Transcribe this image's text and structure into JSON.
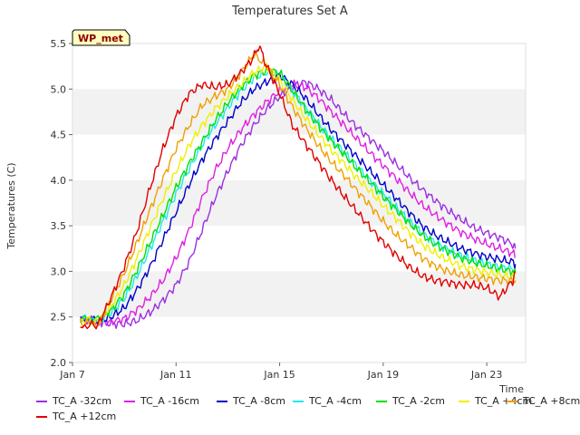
{
  "chart_data": {
    "type": "line",
    "title": "Temperatures Set A",
    "xlabel": "Time",
    "ylabel": "Temperatures (C)",
    "badge": "WP_met",
    "xlim": [
      7,
      24.5
    ],
    "ylim": [
      2.0,
      5.5
    ],
    "x_ticks": [
      {
        "value": 7,
        "label": "Jan 7"
      },
      {
        "value": 11,
        "label": "Jan 11"
      },
      {
        "value": 15,
        "label": "Jan 15"
      },
      {
        "value": 19,
        "label": "Jan 19"
      },
      {
        "value": 23,
        "label": "Jan 23"
      }
    ],
    "y_ticks": [
      "2.0",
      "2.5",
      "3.0",
      "3.5",
      "4.0",
      "4.5",
      "5.0",
      "5.5"
    ],
    "grid": "alternating horizontal bands",
    "legend_position": "bottom",
    "series": [
      {
        "name": "TC_A -32cm",
        "color": "#9b30e0",
        "x": [
          7.3,
          8,
          8.5,
          9,
          9.5,
          10,
          10.5,
          11,
          11.5,
          12,
          12.5,
          13,
          13.5,
          14,
          14.5,
          15,
          15.5,
          16,
          16.5,
          17,
          17.5,
          18,
          18.5,
          19,
          19.5,
          20,
          20.5,
          21,
          21.5,
          22,
          22.5,
          23,
          23.5,
          24,
          24.1
        ],
        "y": [
          2.48,
          2.45,
          2.43,
          2.42,
          2.46,
          2.55,
          2.68,
          2.85,
          3.1,
          3.45,
          3.8,
          4.1,
          4.38,
          4.6,
          4.78,
          4.92,
          5.03,
          5.08,
          5.0,
          4.88,
          4.72,
          4.58,
          4.45,
          4.32,
          4.18,
          4.03,
          3.9,
          3.78,
          3.67,
          3.57,
          3.48,
          3.42,
          3.37,
          3.3,
          3.25
        ]
      },
      {
        "name": "TC_A -16cm",
        "color": "#e020e0",
        "x": [
          7.3,
          8,
          8.5,
          9,
          9.5,
          10,
          10.5,
          11,
          11.5,
          12,
          12.5,
          13,
          13.5,
          14,
          14.5,
          15,
          15.5,
          16,
          16.5,
          17,
          17.5,
          18,
          18.5,
          19,
          19.5,
          20,
          20.5,
          21,
          21.5,
          22,
          22.5,
          23,
          23.5,
          24,
          24.1
        ],
        "y": [
          2.46,
          2.44,
          2.45,
          2.48,
          2.58,
          2.72,
          2.9,
          3.15,
          3.45,
          3.8,
          4.1,
          4.35,
          4.55,
          4.72,
          4.86,
          4.98,
          5.05,
          5.02,
          4.9,
          4.75,
          4.6,
          4.45,
          4.3,
          4.16,
          4.02,
          3.87,
          3.73,
          3.62,
          3.52,
          3.43,
          3.36,
          3.3,
          3.25,
          3.2,
          3.15
        ]
      },
      {
        "name": "TC_A -8cm",
        "color": "#0000c8",
        "x": [
          7.3,
          8,
          8.5,
          9,
          9.5,
          10,
          10.5,
          11,
          11.5,
          12,
          12.5,
          13,
          13.5,
          14,
          14.5,
          15,
          15.5,
          16,
          16.5,
          17,
          17.5,
          18,
          18.5,
          19,
          19.5,
          20,
          20.5,
          21,
          21.5,
          22,
          22.5,
          23,
          23.5,
          24,
          24.1
        ],
        "y": [
          2.47,
          2.45,
          2.5,
          2.6,
          2.8,
          3.05,
          3.35,
          3.65,
          3.95,
          4.22,
          4.45,
          4.65,
          4.85,
          5.0,
          5.08,
          5.15,
          5.05,
          4.9,
          4.72,
          4.55,
          4.4,
          4.25,
          4.1,
          3.95,
          3.8,
          3.65,
          3.5,
          3.4,
          3.32,
          3.25,
          3.2,
          3.16,
          3.13,
          3.1,
          3.08
        ]
      },
      {
        "name": "TC_A -4cm",
        "color": "#20e8f0",
        "x": [
          7.3,
          8,
          8.5,
          9,
          9.5,
          10,
          10.5,
          11,
          11.5,
          12,
          12.5,
          13,
          13.5,
          14,
          14.5,
          15,
          15.5,
          16,
          16.5,
          17,
          17.5,
          18,
          18.5,
          19,
          19.5,
          20,
          20.5,
          21,
          21.5,
          22,
          22.5,
          23,
          23.5,
          24,
          24.1
        ],
        "y": [
          2.48,
          2.46,
          2.55,
          2.7,
          2.95,
          3.25,
          3.55,
          3.85,
          4.12,
          4.38,
          4.6,
          4.8,
          4.98,
          5.12,
          5.18,
          5.15,
          4.98,
          4.8,
          4.62,
          4.45,
          4.3,
          4.15,
          4.0,
          3.85,
          3.7,
          3.55,
          3.42,
          3.32,
          3.24,
          3.17,
          3.12,
          3.08,
          3.05,
          3.03,
          3.02
        ]
      },
      {
        "name": "TC_A -2cm",
        "color": "#00e000",
        "x": [
          7.3,
          8,
          8.5,
          9,
          9.5,
          10,
          10.5,
          11,
          11.5,
          12,
          12.5,
          13,
          13.5,
          14,
          14.5,
          15,
          15.5,
          16,
          16.5,
          17,
          17.5,
          18,
          18.5,
          19,
          19.5,
          20,
          20.5,
          21,
          21.5,
          22,
          22.5,
          23,
          23.5,
          24,
          24.1
        ],
        "y": [
          2.49,
          2.47,
          2.58,
          2.75,
          3.02,
          3.32,
          3.62,
          3.92,
          4.18,
          4.42,
          4.65,
          4.85,
          5.02,
          5.15,
          5.2,
          5.18,
          4.98,
          4.78,
          4.6,
          4.43,
          4.28,
          4.12,
          3.98,
          3.82,
          3.68,
          3.53,
          3.4,
          3.3,
          3.22,
          3.15,
          3.1,
          3.06,
          3.03,
          3.0,
          2.98
        ]
      },
      {
        "name": "TC_A +4cm",
        "color": "#f0f000",
        "x": [
          7.3,
          8,
          8.5,
          9,
          9.5,
          10,
          10.5,
          11,
          11.5,
          12,
          12.5,
          13,
          13.5,
          14,
          14.5,
          15,
          15.5,
          16,
          16.5,
          17,
          17.5,
          18,
          18.5,
          19,
          19.5,
          20,
          20.5,
          21,
          21.5,
          22,
          22.5,
          23,
          23.5,
          24,
          24.1
        ],
        "y": [
          2.47,
          2.45,
          2.62,
          2.85,
          3.15,
          3.48,
          3.8,
          4.1,
          4.38,
          4.6,
          4.78,
          4.92,
          5.05,
          5.18,
          5.25,
          5.1,
          4.88,
          4.68,
          4.5,
          4.33,
          4.18,
          4.02,
          3.88,
          3.72,
          3.58,
          3.43,
          3.3,
          3.2,
          3.12,
          3.06,
          3.02,
          2.99,
          2.96,
          2.94,
          2.92
        ]
      },
      {
        "name": "TC_A +8cm",
        "color": "#f0a000",
        "x": [
          7.3,
          8,
          8.5,
          9,
          9.5,
          10,
          10.5,
          11,
          11.5,
          12,
          12.5,
          13,
          13.5,
          14,
          14.5,
          15,
          15.5,
          16,
          16.5,
          17,
          17.5,
          18,
          18.5,
          19,
          19.5,
          20,
          20.5,
          21,
          21.5,
          22,
          22.5,
          23,
          23.5,
          24,
          24.1
        ],
        "y": [
          2.44,
          2.42,
          2.7,
          2.98,
          3.32,
          3.68,
          4.02,
          4.35,
          4.6,
          4.82,
          4.92,
          5.0,
          5.18,
          5.38,
          5.25,
          5.05,
          4.8,
          4.58,
          4.38,
          4.2,
          4.05,
          3.88,
          3.72,
          3.55,
          3.4,
          3.28,
          3.15,
          3.06,
          3.0,
          2.96,
          2.94,
          2.92,
          2.9,
          2.9,
          2.9
        ]
      },
      {
        "name": "TC_A +12cm",
        "color": "#e00000",
        "x": [
          7.3,
          8,
          8.5,
          9,
          9.5,
          10,
          10.5,
          11,
          11.5,
          12,
          12.5,
          13,
          13.5,
          14,
          14.2,
          14.5,
          15,
          15.5,
          16,
          16.5,
          17,
          17.5,
          18,
          18.5,
          19,
          19.5,
          20,
          20.5,
          21,
          21.5,
          22,
          22.5,
          23,
          23.5,
          24,
          24.1
        ],
        "y": [
          2.39,
          2.42,
          2.72,
          3.05,
          3.45,
          3.92,
          4.35,
          4.7,
          4.95,
          5.05,
          5.02,
          5.05,
          5.18,
          5.35,
          5.48,
          5.25,
          4.95,
          4.6,
          4.4,
          4.2,
          4.0,
          3.82,
          3.65,
          3.48,
          3.32,
          3.18,
          3.05,
          2.95,
          2.9,
          2.88,
          2.85,
          2.85,
          2.82,
          2.72,
          2.9,
          3.0
        ]
      }
    ]
  }
}
